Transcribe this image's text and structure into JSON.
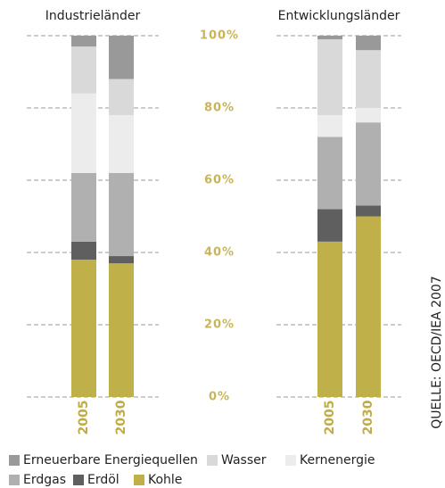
{
  "chart_data": {
    "type": "stacked_bar",
    "groups": [
      "Industrieländer",
      "Entwicklungsländer"
    ],
    "categories": [
      "2005",
      "2030",
      "2005",
      "2030"
    ],
    "series": [
      {
        "name": "Erneuerbare Energiequellen",
        "color": "#999999",
        "values": [
          3,
          12,
          1,
          4
        ]
      },
      {
        "name": "Wasser",
        "color": "#d9d9d9",
        "values": [
          13,
          10,
          21,
          16
        ]
      },
      {
        "name": "Kernenergie",
        "color": "#ececec",
        "values": [
          22,
          16,
          6,
          4
        ]
      },
      {
        "name": "Erdgas",
        "color": "#b0b0b0",
        "values": [
          19,
          23,
          20,
          23
        ]
      },
      {
        "name": "Erdöl",
        "color": "#5f5f5f",
        "values": [
          5,
          2,
          9,
          3
        ]
      },
      {
        "name": "Kohle",
        "color": "#bfb04a",
        "values": [
          38,
          37,
          43,
          50
        ]
      }
    ],
    "ylim": [
      0,
      100
    ],
    "yticks": [
      {
        "value": 0,
        "label": "0%"
      },
      {
        "value": 20,
        "label": "20%"
      },
      {
        "value": 40,
        "label": "40%"
      },
      {
        "value": 60,
        "label": "60%"
      },
      {
        "value": 80,
        "label": "80%"
      },
      {
        "value": 100,
        "label": "100%"
      }
    ],
    "grid": true,
    "source": "QUELLE: OECD/IEA 2007"
  }
}
